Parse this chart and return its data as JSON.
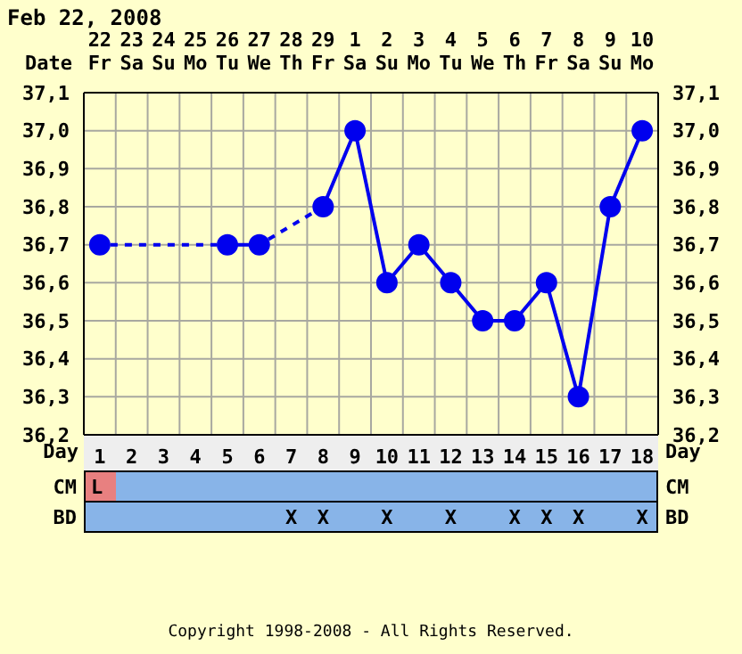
{
  "chart_data": [
    {
      "type": "line",
      "title": "Feb 22, 2008",
      "xlabel": "Day",
      "x2label": "Date",
      "x": [
        1,
        2,
        3,
        4,
        5,
        6,
        7,
        8,
        9,
        10,
        11,
        12,
        13,
        14,
        15,
        16,
        17,
        18
      ],
      "series": [
        {
          "color": "#0000ee",
          "values": [
            36.7,
            null,
            null,
            null,
            36.7,
            36.7,
            null,
            36.8,
            37.0,
            36.6,
            36.7,
            36.6,
            36.5,
            36.5,
            36.6,
            36.3,
            36.8,
            37.0
          ]
        }
      ],
      "xlim": [
        0.5,
        18.5
      ],
      "xticks": [
        1,
        2,
        3,
        4,
        5,
        6,
        7,
        8,
        9,
        10,
        11,
        12,
        13,
        14,
        15,
        16,
        17,
        18
      ],
      "x2lim": [
        "2008-02-21T12:00",
        "2008-03-10T12:00"
      ],
      "x2ticks": [
        {
          "value": "2008-02-22",
          "label": "22 Fr"
        },
        {
          "value": "2008-02-23",
          "label": "23 Sa"
        },
        {
          "value": "2008-02-24",
          "label": "24 Su"
        },
        {
          "value": "2008-02-25",
          "label": "25 Mo"
        },
        {
          "value": "2008-02-26",
          "label": "26 Tu"
        },
        {
          "value": "2008-02-27",
          "label": "27 We"
        },
        {
          "value": "2008-02-28",
          "label": "28 Th"
        },
        {
          "value": "2008-02-29",
          "label": "29 Fr"
        },
        {
          "value": "2008-03-01",
          "label": "1 Sa"
        },
        {
          "value": "2008-03-02",
          "label": "2 Su"
        },
        {
          "value": "2008-03-03",
          "label": "3 Mo"
        },
        {
          "value": "2008-03-04",
          "label": "4 Tu"
        },
        {
          "value": "2008-03-05",
          "label": "5 We"
        },
        {
          "value": "2008-03-06",
          "label": "6 Th"
        },
        {
          "value": "2008-03-07",
          "label": "7 Fr"
        },
        {
          "value": "2008-03-08",
          "label": "8 Sa"
        },
        {
          "value": "2008-03-09",
          "label": "9 Su"
        },
        {
          "value": "2008-03-10",
          "label": "10 Mo"
        }
      ],
      "ylim": [
        36.2,
        37.1
      ],
      "yticks": [
        {
          "value": 36.2,
          "label": "36,2"
        },
        {
          "value": 36.3,
          "label": "36,3"
        },
        {
          "value": 36.4,
          "label": "36,4"
        },
        {
          "value": 36.5,
          "label": "36,5"
        },
        {
          "value": 36.6,
          "label": "36,6"
        },
        {
          "value": 36.7,
          "label": "36,7"
        },
        {
          "value": 36.8,
          "label": "36,8"
        },
        {
          "value": 36.9,
          "label": "36,9"
        },
        {
          "value": 37.0,
          "label": "37,0"
        },
        {
          "value": 37.1,
          "label": "37,1"
        }
      ],
      "y2lim": [
        36.2,
        37.1
      ],
      "y2ticks": [
        {
          "value": 36.2,
          "label": "36,2"
        },
        {
          "value": 36.3,
          "label": "36,3"
        },
        {
          "value": 36.4,
          "label": "36,4"
        },
        {
          "value": 36.5,
          "label": "36,5"
        },
        {
          "value": 36.6,
          "label": "36,6"
        },
        {
          "value": 36.7,
          "label": "36,7"
        },
        {
          "value": 36.8,
          "label": "36,8"
        },
        {
          "value": 36.9,
          "label": "36,9"
        },
        {
          "value": 37.0,
          "label": "37,0"
        },
        {
          "value": 37.1,
          "label": "37,1"
        }
      ],
      "grid": true,
      "marker": "circle",
      "annotations": [
        "Copyright 1998-2008 - All Rights Reserved."
      ]
    },
    {
      "type": "heatmap",
      "categories": [
        null,
        null,
        null,
        null,
        null,
        null,
        null,
        null,
        null,
        null,
        null,
        null,
        null,
        null,
        null,
        null,
        null,
        null
      ],
      "y_categories": [
        "CM",
        "BD"
      ],
      "y2_categories": [
        "CM",
        "BD"
      ],
      "colors": [
        "#88b4e8",
        "#88b4e8"
      ],
      "cells": [
        [
          null,
          null,
          null,
          null,
          null,
          null,
          null,
          null,
          null,
          null,
          null,
          null,
          null,
          null,
          null,
          null,
          null,
          null
        ],
        [
          null,
          null,
          null,
          null,
          null,
          null,
          null,
          null,
          null,
          null,
          null,
          null,
          null,
          null,
          null,
          null,
          null,
          null
        ]
      ],
      "cell_labels": [
        [
          "L",
          null,
          null,
          null,
          null,
          null,
          null,
          null,
          null,
          null,
          null,
          null,
          null,
          null,
          null,
          null,
          null,
          null
        ],
        [
          null,
          null,
          null,
          null,
          null,
          null,
          "X",
          "X",
          null,
          "X",
          null,
          "X",
          null,
          "X",
          "X",
          "X",
          null,
          "X"
        ]
      ]
    }
  ]
}
